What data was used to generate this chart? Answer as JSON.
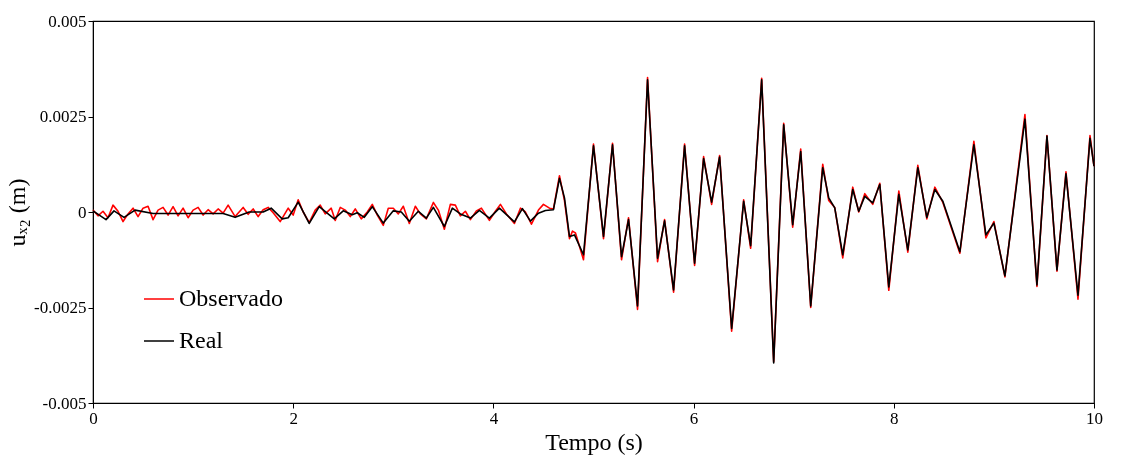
{
  "chart_data": {
    "type": "line",
    "xlabel": "Tempo (s)",
    "ylabel": "uₓ₂ (m)",
    "xlim": [
      0,
      10
    ],
    "xticks": [
      0,
      2,
      4,
      6,
      8,
      10
    ],
    "ylim": [
      -0.005,
      0.005
    ],
    "yticks": [
      -0.005,
      -0.0025,
      0,
      0.0025,
      0.005
    ],
    "grid": false,
    "legend": "bottom left",
    "marker": "none",
    "line_style": "solid",
    "series": [
      {
        "name": "Observado",
        "color": "#ff0000",
        "x": [
          0,
          0.05,
          0.1,
          0.15,
          0.2,
          0.25,
          0.3,
          0.35,
          0.4,
          0.45,
          0.5,
          0.55,
          0.6,
          0.65,
          0.7,
          0.75,
          0.8,
          0.85,
          0.9,
          0.95,
          1.0,
          1.05,
          1.1,
          1.15,
          1.2,
          1.25,
          1.3,
          1.35,
          1.42,
          1.5,
          1.55,
          1.6,
          1.65,
          1.7,
          1.75,
          1.8,
          1.87,
          1.95,
          2.0,
          2.05,
          2.1,
          2.16,
          2.22,
          2.27,
          2.32,
          2.38,
          2.42,
          2.47,
          2.52,
          2.57,
          2.62,
          2.68,
          2.74,
          2.79,
          2.84,
          2.9,
          2.95,
          3.0,
          3.05,
          3.1,
          3.16,
          3.22,
          3.27,
          3.33,
          3.4,
          3.45,
          3.51,
          3.57,
          3.62,
          3.67,
          3.72,
          3.77,
          3.83,
          3.88,
          3.96,
          4.02,
          4.07,
          4.13,
          4.21,
          4.27,
          4.32,
          4.38,
          4.45,
          4.5,
          4.56,
          4.6,
          4.66,
          4.71,
          4.76,
          4.79,
          4.82,
          4.9,
          5.0,
          5.1,
          5.19,
          5.28,
          5.35,
          5.44,
          5.54,
          5.64,
          5.71,
          5.8,
          5.91,
          6.01,
          6.1,
          6.18,
          6.26,
          6.38,
          6.5,
          6.57,
          6.68,
          6.8,
          6.9,
          6.99,
          7.07,
          7.17,
          7.29,
          7.35,
          7.41,
          7.49,
          7.59,
          7.65,
          7.71,
          7.79,
          7.86,
          7.95,
          8.05,
          8.14,
          8.24,
          8.33,
          8.41,
          8.49,
          8.66,
          8.8,
          8.92,
          9.0,
          9.11,
          9.31,
          9.43,
          9.53,
          9.63,
          9.72,
          9.84,
          9.96,
          10.0
        ],
        "values": [
          5e-05,
          -0.0001,
          2e-05,
          -0.00015,
          0.00018,
          2e-05,
          -0.00025,
          -5e-05,
          0.0001,
          -0.00012,
          0.0001,
          0.00015,
          -0.0002,
          5e-05,
          0.00012,
          -8e-05,
          0.00014,
          -0.0001,
          0.0001,
          -0.00015,
          5e-05,
          0.00012,
          -8e-05,
          6e-05,
          -5e-05,
          8e-05,
          -3e-05,
          0.00018,
          -0.00012,
          0.00012,
          -6e-05,
          8e-05,
          -0.00012,
          6e-05,
          0.00012,
          -2e-05,
          -0.00025,
          0.0001,
          -8e-05,
          0.00032,
          0.0,
          -0.00028,
          5e-05,
          0.00018,
          -5e-05,
          0.0001,
          -0.00022,
          0.00012,
          5e-05,
          -0.00012,
          8e-05,
          -0.00018,
          0.0,
          0.0002,
          -8e-05,
          -0.00035,
          0.0001,
          0.0001,
          -5e-05,
          0.00015,
          -0.0003,
          0.00015,
          -5e-05,
          -0.00018,
          0.00025,
          5e-05,
          -0.00045,
          0.0002,
          0.00018,
          -0.0001,
          2e-05,
          -0.0002,
          3e-05,
          0.0001,
          -0.00022,
          2e-05,
          0.0002,
          -5e-05,
          -0.0003,
          0.0001,
          0.0,
          -0.00032,
          5e-05,
          0.0002,
          0.0001,
          8e-05,
          0.00095,
          0.0003,
          -0.0007,
          -0.0005,
          -0.00055,
          -0.00125,
          0.00178,
          -0.0007,
          0.0018,
          -0.00125,
          -0.00015,
          -0.00255,
          0.00352,
          -0.0013,
          -0.0002,
          -0.0021,
          0.00178,
          -0.0014,
          0.00145,
          0.0002,
          0.00148,
          -0.00312,
          0.00032,
          -0.00095,
          0.0035,
          -0.00392,
          0.00232,
          -0.0004,
          0.00165,
          -0.0025,
          0.00125,
          0.0003,
          0.00012,
          -0.0012,
          0.00065,
          0.0,
          0.00048,
          0.0002,
          0.00075,
          -0.00205,
          0.00055,
          -0.00105,
          0.00122,
          -0.00018,
          0.00065,
          0.00025,
          -0.00108,
          0.00185,
          -0.00068,
          -0.00025,
          -0.0017,
          0.00255,
          -0.00195,
          0.002,
          -0.00155,
          0.00105,
          -0.00228,
          0.002,
          0.0012
        ]
      },
      {
        "name": "Real",
        "color": "#000000",
        "x": [
          0,
          0.13,
          0.21,
          0.31,
          0.42,
          0.6,
          1.0,
          1.3,
          1.42,
          1.56,
          1.7,
          1.78,
          1.89,
          1.95,
          2.05,
          2.16,
          2.26,
          2.41,
          2.5,
          2.59,
          2.64,
          2.71,
          2.79,
          2.9,
          3.0,
          3.08,
          3.16,
          3.25,
          3.33,
          3.4,
          3.51,
          3.59,
          3.67,
          3.77,
          3.86,
          3.96,
          4.06,
          4.21,
          4.29,
          4.37,
          4.45,
          4.52,
          4.6,
          4.66,
          4.71,
          4.76,
          4.81,
          4.9,
          5.0,
          5.1,
          5.19,
          5.28,
          5.35,
          5.44,
          5.54,
          5.64,
          5.71,
          5.8,
          5.91,
          6.01,
          6.1,
          6.18,
          6.26,
          6.38,
          6.5,
          6.57,
          6.68,
          6.8,
          6.9,
          6.99,
          7.07,
          7.17,
          7.29,
          7.35,
          7.41,
          7.49,
          7.59,
          7.65,
          7.71,
          7.79,
          7.86,
          7.95,
          8.05,
          8.14,
          8.24,
          8.33,
          8.41,
          8.49,
          8.66,
          8.8,
          8.92,
          9.0,
          9.11,
          9.31,
          9.43,
          9.53,
          9.63,
          9.72,
          9.84,
          9.96,
          10.0
        ],
        "values": [
          3e-05,
          -0.0002,
          3e-05,
          -0.00014,
          5e-05,
          -4e-05,
          -4e-05,
          -4e-05,
          -0.00014,
          0.0,
          0.0,
          0.0001,
          -0.00018,
          -0.00015,
          0.00026,
          -0.0003,
          0.00014,
          -0.00018,
          3e-05,
          -7e-05,
          -2e-05,
          -0.00014,
          0.00014,
          -0.00029,
          3e-05,
          0.0,
          -0.00024,
          2e-05,
          -0.00016,
          0.00012,
          -0.00038,
          0.0001,
          -5e-05,
          -0.00016,
          4e-05,
          -0.00016,
          0.0001,
          -0.00026,
          9e-05,
          -0.00024,
          -3e-05,
          4e-05,
          6e-05,
          0.00088,
          0.00037,
          -0.00064,
          -0.0006,
          -0.00112,
          0.00173,
          -0.00064,
          0.00176,
          -0.00117,
          -0.0002,
          -0.00246,
          0.00346,
          -0.00121,
          -0.00023,
          -0.00204,
          0.00173,
          -0.00134,
          0.0014,
          0.00026,
          0.00144,
          -0.00305,
          0.00028,
          -0.00088,
          0.00346,
          -0.00395,
          0.00228,
          -0.00033,
          0.00158,
          -0.00246,
          0.00116,
          0.00037,
          0.00011,
          -0.00112,
          0.00059,
          2e-05,
          0.00041,
          0.00024,
          0.00072,
          -0.00196,
          0.00046,
          -0.00099,
          0.00116,
          -0.00014,
          0.00059,
          0.00028,
          -0.00104,
          0.00176,
          -0.0006,
          -0.00029,
          -0.00167,
          0.00243,
          -0.00191,
          0.00199,
          -0.00152,
          0.001,
          -0.00218,
          0.00193,
          0.0012
        ]
      }
    ]
  }
}
